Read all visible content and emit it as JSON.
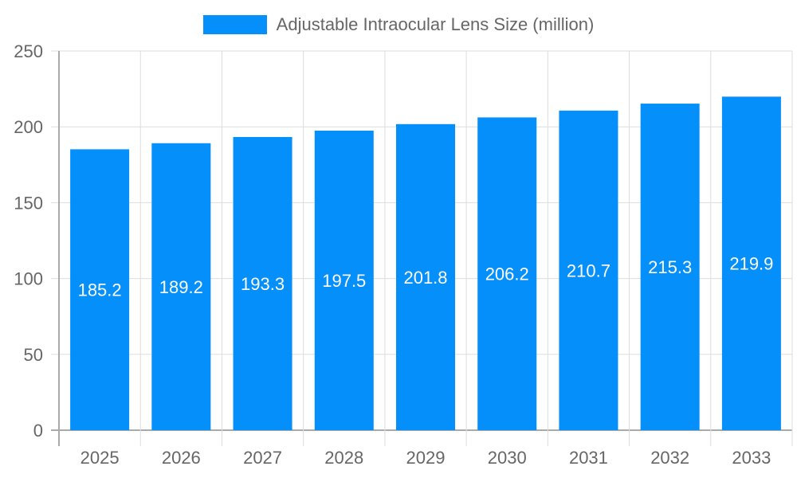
{
  "chart_data": {
    "type": "bar",
    "categories": [
      "2025",
      "2026",
      "2027",
      "2028",
      "2029",
      "2030",
      "2031",
      "2032",
      "2033"
    ],
    "series": [
      {
        "name": "Adjustable Intraocular Lens Size (million)",
        "values": [
          185.2,
          189.2,
          193.3,
          197.5,
          201.8,
          206.2,
          210.7,
          215.3,
          219.9
        ],
        "color": "#058ffa"
      }
    ],
    "ylim": [
      0,
      250
    ],
    "yticks": [
      0,
      50,
      100,
      150,
      200,
      250
    ],
    "grid": true,
    "legend": "top-center",
    "data_labels": true
  }
}
